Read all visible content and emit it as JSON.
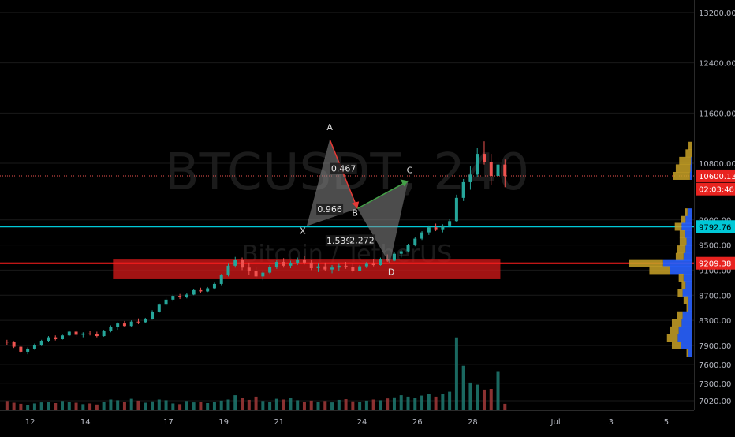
{
  "watermark": {
    "symbol": "BTCUSDT, 240",
    "name": "Bitcoin / TetherUS"
  },
  "colors": {
    "background": "#000000",
    "up": "#26a69a",
    "down": "#ef5350",
    "volume_up": "#1f7a71",
    "volume_down": "#a33a3a",
    "grid": "#1a1a1a",
    "axis_text": "#b2b5be",
    "cyan_line": "#00c8d7",
    "red_line": "#ff1e1e",
    "zone_fill": "#d01818",
    "profile_blue": "#2962ff",
    "profile_gold": "#c9a227",
    "price_dotted": "#ef5350"
  },
  "chart_data": {
    "type": "candlestick",
    "x_axis": {
      "tick_labels": [
        "12",
        "14",
        "17",
        "19",
        "21",
        "24",
        "26",
        "28",
        "Jul",
        "3",
        "5"
      ],
      "range_days": [
        "2020-06-11",
        "2020-07-06"
      ]
    },
    "y_axis": {
      "tick_labels": [
        "13200.00",
        "12400.00",
        "11600.00",
        "10800.00",
        "9900.00",
        "9500.00",
        "9100.00",
        "8700.00",
        "8300.00",
        "7900.00",
        "7600.00",
        "7300.00",
        "7020.00"
      ],
      "tick_values": [
        13200,
        12400,
        11600,
        10800,
        9900,
        9500,
        9100,
        8700,
        8300,
        7900,
        7600,
        7300,
        7020
      ],
      "range": [
        6870,
        13400
      ]
    },
    "price_labels": [
      {
        "text": "10600.13",
        "value": 10600.13,
        "style": "red"
      },
      {
        "text": "02:03:46",
        "value": 10390,
        "style": "red"
      },
      {
        "text": "9792.76",
        "value": 9792.76,
        "style": "cyan"
      },
      {
        "text": "9209.38",
        "value": 9209.38,
        "style": "red"
      }
    ],
    "horizontal_lines": [
      {
        "value": 10600.13,
        "style": "dotted"
      },
      {
        "value": 9792.76,
        "style": "cyan"
      },
      {
        "value": 9209.38,
        "style": "red"
      }
    ],
    "zone": {
      "from": 8955,
      "to": 9280,
      "x_start": "2020-06-15",
      "x_end": "2020-06-29"
    },
    "harmonic_pattern": {
      "points": [
        {
          "label": "X",
          "x": "2020-06-22 00:00",
          "y": 9800
        },
        {
          "label": "A",
          "x": "2020-06-22 20:00",
          "y": 11180
        },
        {
          "label": "B",
          "x": "2020-06-23 20:00",
          "y": 10080
        },
        {
          "label": "C",
          "x": "2020-06-25 16:00",
          "y": 10520
        },
        {
          "label": "D",
          "x": "2020-06-25 00:00",
          "y": 9200
        }
      ],
      "ratios": [
        {
          "text": "0.467",
          "x": "2020-06-23 08:00",
          "y": 10680
        },
        {
          "text": "0.966",
          "x": "2020-06-22 20:00",
          "y": 10035
        },
        {
          "text": "1.539",
          "x": "2020-06-23 04:00",
          "y": 9530
        },
        {
          "text": "2.272",
          "x": "2020-06-24 00:00",
          "y": 9540
        }
      ]
    },
    "candles": [
      [
        7960,
        7990,
        7900,
        7950
      ],
      [
        7950,
        7970,
        7860,
        7880
      ],
      [
        7880,
        7890,
        7780,
        7800
      ],
      [
        7800,
        7870,
        7760,
        7850
      ],
      [
        7850,
        7930,
        7830,
        7910
      ],
      [
        7910,
        7990,
        7890,
        7975
      ],
      [
        7975,
        8050,
        7950,
        8030
      ],
      [
        8030,
        8060,
        7980,
        8000
      ],
      [
        8000,
        8080,
        7990,
        8060
      ],
      [
        8060,
        8140,
        8050,
        8120
      ],
      [
        8120,
        8150,
        8040,
        8070
      ],
      [
        8070,
        8110,
        8030,
        8090
      ],
      [
        8090,
        8130,
        8060,
        8080
      ],
      [
        8080,
        8120,
        8030,
        8050
      ],
      [
        8050,
        8150,
        8040,
        8130
      ],
      [
        8130,
        8220,
        8110,
        8190
      ],
      [
        8190,
        8270,
        8150,
        8250
      ],
      [
        8250,
        8290,
        8190,
        8210
      ],
      [
        8210,
        8300,
        8200,
        8280
      ],
      [
        8280,
        8330,
        8240,
        8270
      ],
      [
        8270,
        8340,
        8260,
        8320
      ],
      [
        8320,
        8460,
        8310,
        8440
      ],
      [
        8440,
        8570,
        8420,
        8550
      ],
      [
        8550,
        8660,
        8530,
        8630
      ],
      [
        8630,
        8710,
        8600,
        8690
      ],
      [
        8690,
        8720,
        8640,
        8670
      ],
      [
        8670,
        8730,
        8650,
        8710
      ],
      [
        8710,
        8800,
        8700,
        8780
      ],
      [
        8780,
        8820,
        8740,
        8760
      ],
      [
        8760,
        8830,
        8750,
        8810
      ],
      [
        8810,
        8900,
        8790,
        8880
      ],
      [
        8880,
        9040,
        8860,
        9020
      ],
      [
        9020,
        9200,
        9000,
        9170
      ],
      [
        9170,
        9310,
        9140,
        9260
      ],
      [
        9260,
        9300,
        9100,
        9140
      ],
      [
        9140,
        9220,
        9020,
        9080
      ],
      [
        9080,
        9150,
        8960,
        9000
      ],
      [
        9000,
        9090,
        8940,
        9060
      ],
      [
        9060,
        9180,
        9040,
        9150
      ],
      [
        9150,
        9260,
        9120,
        9230
      ],
      [
        9230,
        9290,
        9140,
        9170
      ],
      [
        9170,
        9250,
        9130,
        9210
      ],
      [
        9210,
        9300,
        9180,
        9270
      ],
      [
        9270,
        9320,
        9190,
        9220
      ],
      [
        9220,
        9260,
        9100,
        9130
      ],
      [
        9130,
        9200,
        9070,
        9160
      ],
      [
        9160,
        9220,
        9090,
        9110
      ],
      [
        9110,
        9180,
        9050,
        9140
      ],
      [
        9140,
        9200,
        9090,
        9170
      ],
      [
        9170,
        9230,
        9120,
        9150
      ],
      [
        9150,
        9210,
        9060,
        9090
      ],
      [
        9090,
        9180,
        9080,
        9160
      ],
      [
        9160,
        9230,
        9130,
        9200
      ],
      [
        9200,
        9280,
        9160,
        9180
      ],
      [
        9180,
        9300,
        9170,
        9280
      ],
      [
        9280,
        9350,
        9230,
        9250
      ],
      [
        9250,
        9380,
        9240,
        9360
      ],
      [
        9360,
        9420,
        9300,
        9400
      ],
      [
        9400,
        9520,
        9380,
        9500
      ],
      [
        9500,
        9620,
        9480,
        9600
      ],
      [
        9600,
        9720,
        9580,
        9700
      ],
      [
        9700,
        9810,
        9660,
        9780
      ],
      [
        9780,
        9840,
        9720,
        9750
      ],
      [
        9750,
        9830,
        9700,
        9810
      ],
      [
        9810,
        9920,
        9780,
        9880
      ],
      [
        9880,
        10300,
        9860,
        10250
      ],
      [
        10250,
        10550,
        10200,
        10500
      ],
      [
        10500,
        10750,
        10380,
        10620
      ],
      [
        10620,
        11050,
        10580,
        10950
      ],
      [
        10950,
        11150,
        10780,
        10820
      ],
      [
        10820,
        10950,
        10450,
        10600
      ],
      [
        10600,
        10900,
        10520,
        10780
      ],
      [
        10780,
        10860,
        10420,
        10600
      ]
    ],
    "volume": {
      "range": [
        0,
        3000
      ],
      "values": [
        260,
        210,
        180,
        150,
        190,
        220,
        240,
        200,
        260,
        230,
        210,
        170,
        190,
        160,
        230,
        300,
        280,
        230,
        320,
        270,
        210,
        250,
        300,
        280,
        190,
        170,
        260,
        220,
        240,
        200,
        230,
        270,
        300,
        420,
        350,
        290,
        380,
        260,
        240,
        320,
        300,
        350,
        280,
        230,
        270,
        240,
        260,
        220,
        290,
        310,
        250,
        230,
        270,
        300,
        280,
        330,
        360,
        420,
        380,
        340,
        410,
        450,
        380,
        460,
        520,
        2050,
        1250,
        780,
        720,
        580,
        600,
        1100,
        180
      ]
    },
    "volume_profile": [
      {
        "price": 11080,
        "blue": 0,
        "gold": 8
      },
      {
        "price": 10960,
        "blue": 0,
        "gold": 14
      },
      {
        "price": 10840,
        "blue": 3,
        "gold": 24
      },
      {
        "price": 10720,
        "blue": 4,
        "gold": 30
      },
      {
        "price": 10600,
        "blue": 5,
        "gold": 34
      },
      {
        "price": 10020,
        "blue": 10,
        "gold": 6
      },
      {
        "price": 9900,
        "blue": 14,
        "gold": 10
      },
      {
        "price": 9790,
        "blue": 22,
        "gold": 14
      },
      {
        "price": 9670,
        "blue": 16,
        "gold": 10
      },
      {
        "price": 9550,
        "blue": 12,
        "gold": 14
      },
      {
        "price": 9430,
        "blue": 14,
        "gold": 18
      },
      {
        "price": 9310,
        "blue": 18,
        "gold": 16
      },
      {
        "price": 9210,
        "blue": 60,
        "gold": 70
      },
      {
        "price": 9100,
        "blue": 46,
        "gold": 42
      },
      {
        "price": 8980,
        "blue": 18,
        "gold": 10
      },
      {
        "price": 8860,
        "blue": 14,
        "gold": 8
      },
      {
        "price": 8740,
        "blue": 20,
        "gold": 10
      },
      {
        "price": 8620,
        "blue": 8,
        "gold": 10
      },
      {
        "price": 8500,
        "blue": 8,
        "gold": 4
      },
      {
        "price": 8380,
        "blue": 20,
        "gold": 12
      },
      {
        "price": 8260,
        "blue": 22,
        "gold": 20
      },
      {
        "price": 8140,
        "blue": 28,
        "gold": 18
      },
      {
        "price": 8020,
        "blue": 30,
        "gold": 22
      },
      {
        "price": 7900,
        "blue": 24,
        "gold": 18
      },
      {
        "price": 7780,
        "blue": 8,
        "gold": 4
      }
    ]
  }
}
